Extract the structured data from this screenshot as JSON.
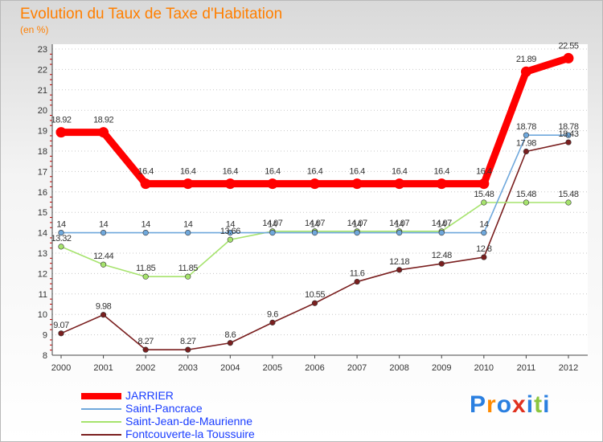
{
  "title": "Evolution du Taux de Taxe d'Habitation",
  "subtitle": "(en %)",
  "brand": "Proxiti",
  "chart_data": {
    "type": "line",
    "title": "Evolution du Taux de Taxe d'Habitation",
    "ylabel": "(en %)",
    "xlabel": "",
    "x": [
      "2000",
      "2001",
      "2002",
      "2003",
      "2004",
      "2005",
      "2006",
      "2007",
      "2008",
      "2009",
      "2010",
      "2011",
      "2012"
    ],
    "ylim": [
      8,
      23
    ],
    "yticks": [
      "8",
      "9",
      "10",
      "11",
      "12",
      "13",
      "14",
      "15",
      "16",
      "17",
      "18",
      "19",
      "20",
      "21",
      "22",
      "23"
    ],
    "grid": "horizontal-dotted",
    "legend_position": "bottom-left",
    "series": [
      {
        "name": "JARRIER",
        "color": "#ff0000",
        "values": [
          18.92,
          18.92,
          16.4,
          16.4,
          16.4,
          16.4,
          16.4,
          16.4,
          16.4,
          16.4,
          16.4,
          21.89,
          22.55
        ],
        "labels": [
          "18.92",
          "18.92",
          "16.4",
          "16.4",
          "16.4",
          "16.4",
          "16.4",
          "16.4",
          "16.4",
          "16.4",
          "16.4",
          "21.89",
          "22.55"
        ]
      },
      {
        "name": "Saint-Pancrace",
        "color": "#6fa8dc",
        "values": [
          14,
          14,
          14,
          14,
          14,
          14,
          14,
          14,
          14,
          14,
          14,
          18.78,
          18.78
        ],
        "labels": [
          "14",
          "14",
          "14",
          "14",
          "14",
          "14",
          "14",
          "14",
          "14",
          "14",
          "14",
          "18.78",
          "18.78"
        ]
      },
      {
        "name": "Saint-Jean-de-Maurienne",
        "color": "#a6e36d",
        "values": [
          13.32,
          12.44,
          11.85,
          11.85,
          13.66,
          14.07,
          14.07,
          14.07,
          14.07,
          14.07,
          15.48,
          15.48,
          15.48
        ],
        "labels": [
          "13.32",
          "12.44",
          "11.85",
          "11.85",
          "13.66",
          "14.07",
          "14.07",
          "14.07",
          "14.07",
          "14.07",
          "15.48",
          "15.48",
          "15.48"
        ]
      },
      {
        "name": "Fontcouverte-la Toussuire",
        "color": "#7a1f1f",
        "values": [
          9.07,
          9.98,
          8.27,
          8.27,
          8.6,
          9.6,
          10.55,
          11.6,
          12.18,
          12.48,
          12.8,
          17.98,
          18.43
        ],
        "labels": [
          "9.07",
          "9.98",
          "8.27",
          "8.27",
          "8.6",
          "9.6",
          "10.55",
          "11.6",
          "12.18",
          "12.48",
          "12.8",
          "17.98",
          "18.43"
        ]
      }
    ]
  }
}
